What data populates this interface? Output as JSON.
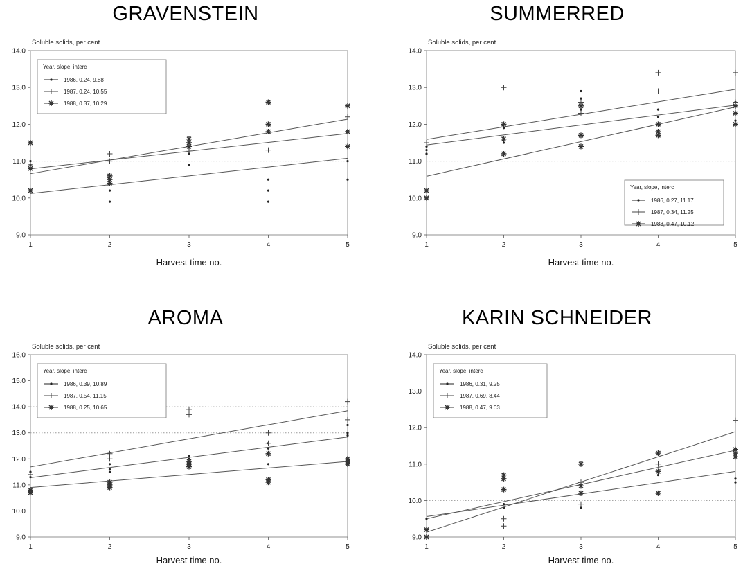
{
  "chart_data": [
    {
      "type": "scatter",
      "title": "GRAVENSTEIN",
      "ylabel": "Soluble solids, per cent",
      "xlabel": "Harvest time no.",
      "x_ticks": [
        1,
        2,
        3,
        4,
        5
      ],
      "y_ticks": [
        "9.0",
        "10.0",
        "11.0",
        "12.0",
        "13.0",
        "14.0"
      ],
      "ylim": [
        9,
        14
      ],
      "xlim": [
        1,
        5
      ],
      "ref_lines": [
        11.0
      ],
      "legend": {
        "title": "Year, slope, interc",
        "position": "top-left"
      },
      "series": [
        {
          "name": "1986, 0.24,  9.88",
          "marker": "dot",
          "slope": 0.24,
          "intercept": 9.88,
          "points": [
            [
              1,
              10.9
            ],
            [
              1,
              11.0
            ],
            [
              2,
              9.9
            ],
            [
              2,
              10.2
            ],
            [
              2,
              10.5
            ],
            [
              3,
              10.9
            ],
            [
              3,
              11.2
            ],
            [
              3,
              11.5
            ],
            [
              4,
              9.9
            ],
            [
              4,
              10.2
            ],
            [
              4,
              10.5
            ],
            [
              5,
              10.5
            ],
            [
              5,
              11.0
            ],
            [
              5,
              11.4
            ]
          ]
        },
        {
          "name": "1987, 0.24, 10.55",
          "marker": "plus",
          "slope": 0.24,
          "intercept": 10.55,
          "points": [
            [
              1,
              10.8
            ],
            [
              1,
              10.9
            ],
            [
              2,
              11.0
            ],
            [
              2,
              11.2
            ],
            [
              3,
              11.3
            ],
            [
              3,
              11.5
            ],
            [
              4,
              11.3
            ],
            [
              4,
              11.8
            ],
            [
              5,
              11.8
            ],
            [
              5,
              12.2
            ]
          ]
        },
        {
          "name": "1988, 0.37, 10.29",
          "marker": "star",
          "slope": 0.37,
          "intercept": 10.29,
          "points": [
            [
              1,
              11.5
            ],
            [
              1,
              10.2
            ],
            [
              1,
              10.8
            ],
            [
              2,
              10.6
            ],
            [
              2,
              10.5
            ],
            [
              2,
              10.4
            ],
            [
              3,
              11.5
            ],
            [
              3,
              11.6
            ],
            [
              3,
              11.4
            ],
            [
              4,
              12.6
            ],
            [
              4,
              12.0
            ],
            [
              4,
              11.8
            ],
            [
              5,
              12.5
            ],
            [
              5,
              11.8
            ],
            [
              5,
              11.4
            ]
          ]
        }
      ]
    },
    {
      "type": "scatter",
      "title": "SUMMERRED",
      "ylabel": "Soluble solids, per cent",
      "xlabel": "Harvest time no.",
      "x_ticks": [
        1,
        2,
        3,
        4,
        5
      ],
      "y_ticks": [
        "9.0",
        "10.0",
        "11.0",
        "12.0",
        "13.0",
        "14.0"
      ],
      "ylim": [
        9,
        14
      ],
      "xlim": [
        1,
        5
      ],
      "ref_lines": [
        11.0
      ],
      "legend": {
        "title": "Year, slope, interc",
        "position": "bottom-right"
      },
      "series": [
        {
          "name": "1986, 0.27, 11.17",
          "marker": "dot",
          "slope": 0.27,
          "intercept": 11.17,
          "points": [
            [
              1,
              11.2
            ],
            [
              1,
              11.3
            ],
            [
              1,
              11.4
            ],
            [
              2,
              11.5
            ],
            [
              2,
              11.6
            ],
            [
              2,
              11.9
            ],
            [
              3,
              12.9
            ],
            [
              3,
              12.7
            ],
            [
              3,
              12.4
            ],
            [
              4,
              12.0
            ],
            [
              4,
              12.2
            ],
            [
              4,
              12.4
            ],
            [
              5,
              12.1
            ],
            [
              5,
              12.3
            ],
            [
              5,
              12.6
            ]
          ]
        },
        {
          "name": "1987, 0.34, 11.25",
          "marker": "plus",
          "slope": 0.34,
          "intercept": 11.25,
          "points": [
            [
              1,
              11.5
            ],
            [
              2,
              13.0
            ],
            [
              2,
              11.6
            ],
            [
              3,
              12.3
            ],
            [
              3,
              12.6
            ],
            [
              4,
              13.4
            ],
            [
              4,
              12.9
            ],
            [
              5,
              13.4
            ],
            [
              5,
              12.6
            ]
          ]
        },
        {
          "name": "1988, 0.47, 10.12",
          "marker": "star",
          "slope": 0.47,
          "intercept": 10.12,
          "points": [
            [
              1,
              10.2
            ],
            [
              1,
              10.0
            ],
            [
              2,
              11.2
            ],
            [
              2,
              11.6
            ],
            [
              2,
              12.0
            ],
            [
              3,
              11.4
            ],
            [
              3,
              11.7
            ],
            [
              3,
              12.5
            ],
            [
              4,
              11.7
            ],
            [
              4,
              11.8
            ],
            [
              4,
              12.0
            ],
            [
              5,
              12.0
            ],
            [
              5,
              12.3
            ],
            [
              5,
              12.5
            ]
          ]
        }
      ]
    },
    {
      "type": "scatter",
      "title": "AROMA",
      "ylabel": "Soluble solids, per cent",
      "xlabel": "Harvest time no.",
      "x_ticks": [
        1,
        2,
        3,
        4,
        5
      ],
      "y_ticks": [
        "9.0",
        "10.0",
        "11.0",
        "12.0",
        "13.0",
        "14.0",
        "15.0",
        "16.0"
      ],
      "ylim": [
        9,
        16
      ],
      "xlim": [
        1,
        5
      ],
      "ref_lines": [
        13.0,
        14.0
      ],
      "legend": {
        "title": "Year, slope, interc",
        "position": "top-left"
      },
      "series": [
        {
          "name": "1986, 0.39, 10.89",
          "marker": "dot",
          "slope": 0.39,
          "intercept": 10.89,
          "points": [
            [
              1,
              11.3
            ],
            [
              1,
              11.5
            ],
            [
              2,
              11.5
            ],
            [
              2,
              11.6
            ],
            [
              2,
              11.8
            ],
            [
              3,
              11.8
            ],
            [
              3,
              12.0
            ],
            [
              3,
              12.1
            ],
            [
              4,
              11.8
            ],
            [
              4,
              12.4
            ],
            [
              4,
              12.6
            ],
            [
              5,
              12.9
            ],
            [
              5,
              13.0
            ],
            [
              5,
              13.3
            ]
          ]
        },
        {
          "name": "1987, 0.54, 11.15",
          "marker": "plus",
          "slope": 0.54,
          "intercept": 11.15,
          "points": [
            [
              1,
              11.4
            ],
            [
              2,
              12.0
            ],
            [
              2,
              12.2
            ],
            [
              3,
              13.7
            ],
            [
              3,
              13.9
            ],
            [
              4,
              12.6
            ],
            [
              4,
              13.0
            ],
            [
              5,
              13.5
            ],
            [
              5,
              14.2
            ]
          ]
        },
        {
          "name": "1988, 0.25, 10.65",
          "marker": "star",
          "slope": 0.25,
          "intercept": 10.65,
          "points": [
            [
              1,
              10.7
            ],
            [
              1,
              10.8
            ],
            [
              2,
              10.9
            ],
            [
              2,
              11.0
            ],
            [
              2,
              11.1
            ],
            [
              3,
              11.7
            ],
            [
              3,
              11.8
            ],
            [
              3,
              11.9
            ],
            [
              4,
              11.1
            ],
            [
              4,
              11.2
            ],
            [
              4,
              12.2
            ],
            [
              5,
              11.8
            ],
            [
              5,
              11.9
            ],
            [
              5,
              12.0
            ]
          ]
        }
      ]
    },
    {
      "type": "scatter",
      "title": "KARIN SCHNEIDER",
      "ylabel": "Soluble solids, per cent",
      "xlabel": "Harvest time no.",
      "x_ticks": [
        1,
        2,
        3,
        4,
        5
      ],
      "y_ticks": [
        "9.0",
        "10.0",
        "11.0",
        "12.0",
        "13.0",
        "14.0"
      ],
      "ylim": [
        9,
        14
      ],
      "xlim": [
        1,
        5
      ],
      "ref_lines": [
        10.0
      ],
      "legend": {
        "title": "Year, slope, interc",
        "position": "top-left"
      },
      "series": [
        {
          "name": "1986, 0.31,  9.25",
          "marker": "dot",
          "slope": 0.31,
          "intercept": 9.25,
          "points": [
            [
              1,
              9.2
            ],
            [
              1,
              9.5
            ],
            [
              2,
              9.8
            ],
            [
              2,
              9.9
            ],
            [
              3,
              9.8
            ],
            [
              3,
              10.2
            ],
            [
              3,
              10.4
            ],
            [
              4,
              10.7
            ],
            [
              4,
              10.8
            ],
            [
              4,
              11.3
            ],
            [
              5,
              10.5
            ],
            [
              5,
              10.6
            ],
            [
              5,
              11.3
            ]
          ]
        },
        {
          "name": "1987, 0.69,  8.44",
          "marker": "plus",
          "slope": 0.69,
          "intercept": 8.44,
          "points": [
            [
              1,
              9.0
            ],
            [
              2,
              9.3
            ],
            [
              2,
              9.5
            ],
            [
              3,
              9.9
            ],
            [
              3,
              10.5
            ],
            [
              4,
              11.0
            ],
            [
              5,
              11.3
            ],
            [
              5,
              12.2
            ]
          ]
        },
        {
          "name": "1988, 0.47,  9.03",
          "marker": "star",
          "slope": 0.47,
          "intercept": 9.03,
          "points": [
            [
              1,
              9.0
            ],
            [
              1,
              9.2
            ],
            [
              2,
              10.3
            ],
            [
              2,
              10.6
            ],
            [
              2,
              10.7
            ],
            [
              3,
              11.0
            ],
            [
              3,
              10.2
            ],
            [
              3,
              10.4
            ],
            [
              4,
              10.2
            ],
            [
              4,
              10.8
            ],
            [
              4,
              11.3
            ],
            [
              5,
              11.2
            ],
            [
              5,
              11.3
            ],
            [
              5,
              11.4
            ]
          ]
        }
      ]
    }
  ]
}
